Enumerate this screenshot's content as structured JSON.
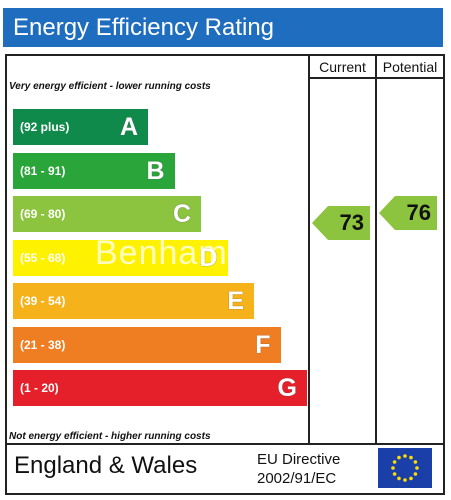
{
  "title": "Energy Efficiency Rating",
  "columns": {
    "current": "Current",
    "potential": "Potential"
  },
  "top_note": "Very energy efficient - lower running costs",
  "bottom_note": "Not energy efficient - higher running costs",
  "watermark": "Benham",
  "footer": {
    "region": "England & Wales",
    "directive_line1": "EU Directive",
    "directive_line2": "2002/91/EC"
  },
  "chart_data": {
    "type": "bar",
    "categories": [
      "A",
      "B",
      "C",
      "D",
      "E",
      "F",
      "G"
    ],
    "ranges": [
      "(92 plus)",
      "(81 - 91)",
      "(69 - 80)",
      "(55 - 68)",
      "(39 - 54)",
      "(21 - 38)",
      "(1 - 20)"
    ],
    "colors": [
      "#0f8a4a",
      "#2aa53a",
      "#8cc43f",
      "#fff200",
      "#f6b21a",
      "#ef7d22",
      "#e5202a"
    ],
    "current": {
      "value": 73,
      "band": "C",
      "color": "#8cc43f"
    },
    "potential": {
      "value": 76,
      "band": "C",
      "color": "#8cc43f"
    }
  }
}
